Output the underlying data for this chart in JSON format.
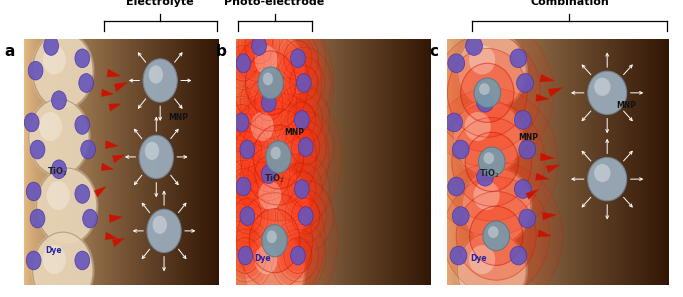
{
  "panels": [
    "a",
    "b",
    "c"
  ],
  "titles": [
    "Electrolyte",
    "Photo-electrode",
    "Combination"
  ],
  "fig_bg": "#ffffff",
  "tio2_face": "#e8d5b8",
  "tio2_edge": "#b09878",
  "mnp_face_a": "#9aaabb",
  "mnp_face_b": "#88aaaa",
  "dye_face": "#6655bb",
  "dye_edge": "#4433aa",
  "red_color": "#cc1100",
  "white_color": "#ffffff",
  "label_color": "#111111",
  "dye_label_color": "#2222aa"
}
